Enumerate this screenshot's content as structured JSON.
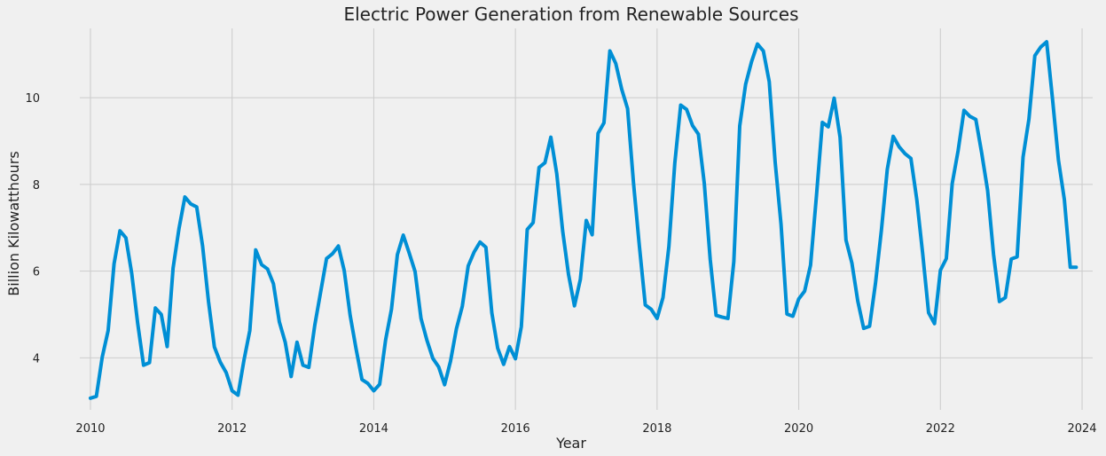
{
  "chart_data": {
    "type": "line",
    "title": "Electric Power Generation from Renewable Sources",
    "xlabel": "Year",
    "ylabel": "Billion Kilowatthours",
    "xlim": [
      2009.85,
      2024.15
    ],
    "ylim": [
      2.8,
      11.6
    ],
    "xticks": [
      2010,
      2012,
      2014,
      2016,
      2018,
      2020,
      2022,
      2024
    ],
    "xtick_labels": [
      "2010",
      "2012",
      "2014",
      "2016",
      "2018",
      "2020",
      "2022",
      "2024"
    ],
    "yticks": [
      4,
      6,
      8,
      10
    ],
    "ytick_labels": [
      "4",
      "6",
      "8",
      "10"
    ],
    "grid": true,
    "legend": "none",
    "colors": {
      "line": "#008fd5",
      "background": "#f0f0f0",
      "grid": "#cbcbcb"
    },
    "series": [
      {
        "x_start": 2010.0,
        "x_step": 0.083333,
        "values": [
          3.07,
          3.11,
          4.02,
          4.63,
          6.17,
          6.93,
          6.77,
          5.94,
          4.8,
          3.83,
          3.89,
          5.15,
          5.0,
          4.26,
          6.07,
          6.98,
          7.71,
          7.55,
          7.48,
          6.58,
          5.3,
          4.25,
          3.9,
          3.66,
          3.24,
          3.14,
          3.94,
          4.63,
          6.49,
          6.15,
          6.05,
          5.71,
          4.83,
          4.36,
          3.57,
          4.36,
          3.83,
          3.78,
          4.75,
          5.52,
          6.29,
          6.4,
          6.58,
          6.01,
          4.98,
          4.21,
          3.5,
          3.41,
          3.24,
          3.39,
          4.41,
          5.12,
          6.38,
          6.83,
          6.42,
          5.99,
          4.91,
          4.41,
          3.99,
          3.79,
          3.38,
          3.92,
          4.67,
          5.19,
          6.12,
          6.44,
          6.67,
          6.55,
          5.04,
          4.22,
          3.85,
          4.26,
          3.98,
          4.72,
          6.96,
          7.12,
          8.39,
          8.5,
          9.09,
          8.25,
          6.93,
          5.92,
          5.2,
          5.81,
          7.17,
          6.84,
          9.18,
          9.42,
          11.08,
          10.79,
          10.2,
          9.75,
          8.04,
          6.58,
          5.22,
          5.12,
          4.91,
          5.39,
          6.57,
          8.49,
          9.83,
          9.73,
          9.36,
          9.16,
          8.02,
          6.27,
          4.98,
          4.94,
          4.91,
          6.22,
          9.35,
          10.31,
          10.83,
          11.24,
          11.08,
          10.37,
          8.52,
          7.08,
          5.01,
          4.96,
          5.36,
          5.54,
          6.14,
          7.74,
          9.43,
          9.33,
          9.99,
          9.09,
          6.72,
          6.19,
          5.31,
          4.68,
          4.73,
          5.72,
          6.94,
          8.35,
          9.11,
          8.87,
          8.71,
          8.6,
          7.65,
          6.4,
          5.04,
          4.79,
          6.02,
          6.29,
          8.02,
          8.78,
          9.71,
          9.57,
          9.5,
          8.72,
          7.86,
          6.39,
          5.3,
          5.39,
          6.28,
          6.33,
          8.63,
          9.51,
          10.97,
          11.17,
          11.29,
          9.96,
          8.56,
          7.65,
          6.09,
          6.09
        ]
      }
    ]
  }
}
